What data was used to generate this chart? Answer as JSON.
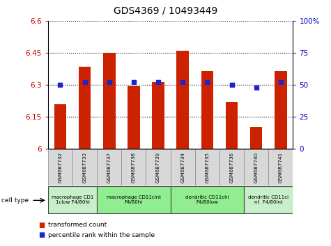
{
  "title": "GDS4369 / 10493449",
  "samples": [
    "GSM687732",
    "GSM687733",
    "GSM687737",
    "GSM687738",
    "GSM687739",
    "GSM687734",
    "GSM687735",
    "GSM687736",
    "GSM687740",
    "GSM687741"
  ],
  "red_values": [
    6.21,
    6.385,
    6.45,
    6.295,
    6.315,
    6.46,
    6.365,
    6.22,
    6.1,
    6.365
  ],
  "blue_values": [
    50,
    52,
    52,
    52,
    52,
    52,
    52,
    50,
    48,
    52
  ],
  "ylim_left": [
    6.0,
    6.6
  ],
  "ylim_right": [
    0,
    100
  ],
  "yticks_left": [
    6.0,
    6.15,
    6.3,
    6.45,
    6.6
  ],
  "yticks_right": [
    0,
    25,
    50,
    75,
    100
  ],
  "ytick_labels_left": [
    "6",
    "6.15",
    "6.3",
    "6.45",
    "6.6"
  ],
  "ytick_labels_right": [
    "0",
    "25",
    "50",
    "75",
    "100%"
  ],
  "cell_groups": [
    {
      "label": "macrophage CD1\n1clow F4/80hi",
      "start": 0,
      "end": 2,
      "color": "#c8f0c8"
    },
    {
      "label": "macrophage CD11cint\nF4/80hi",
      "start": 2,
      "end": 5,
      "color": "#90ee90"
    },
    {
      "label": "dendritic CD11chi\nF4/80low",
      "start": 5,
      "end": 8,
      "color": "#90ee90"
    },
    {
      "label": "dendritic CD11ci\nnt  F4/80int",
      "start": 8,
      "end": 10,
      "color": "#c8f0c8"
    }
  ],
  "legend_red_label": "transformed count",
  "legend_blue_label": "percentile rank within the sample",
  "bar_color": "#cc2200",
  "dot_color": "#2222cc",
  "bar_width": 0.5
}
